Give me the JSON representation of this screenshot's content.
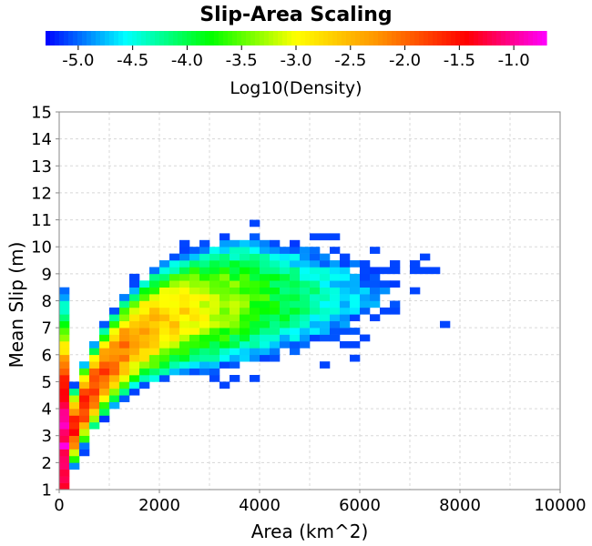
{
  "chart_data": {
    "type": "heatmap",
    "title": "Slip-Area Scaling",
    "xlabel": "Area (km^2)",
    "ylabel": "Mean Slip (m)",
    "xlim": [
      0,
      10000
    ],
    "ylim": [
      1,
      15
    ],
    "xticks": [
      "0",
      "2000",
      "4000",
      "6000",
      "8000",
      "10000"
    ],
    "yticks": [
      "1",
      "2",
      "3",
      "4",
      "5",
      "6",
      "7",
      "8",
      "9",
      "10",
      "11",
      "12",
      "13",
      "14",
      "15"
    ],
    "grid": true,
    "colorbar": {
      "label": "Log10(Density)",
      "range": [
        -5.3,
        -0.7
      ],
      "ticks": [
        "-5.0",
        "-4.5",
        "-4.0",
        "-3.5",
        "-3.0",
        "-2.5",
        "-2.0",
        "-1.5",
        "-1.0"
      ],
      "placement": "top"
    },
    "bin_size": {
      "area": 200,
      "slip": 0.25
    },
    "description": "2D density histogram of mean slip vs rupture area; densest (red/magenta) at small areas and low slip, a broad green band around slip 7-9 m for areas 1000-5000 km^2, sparse blue outliers extending to ~9000 km^2."
  }
}
